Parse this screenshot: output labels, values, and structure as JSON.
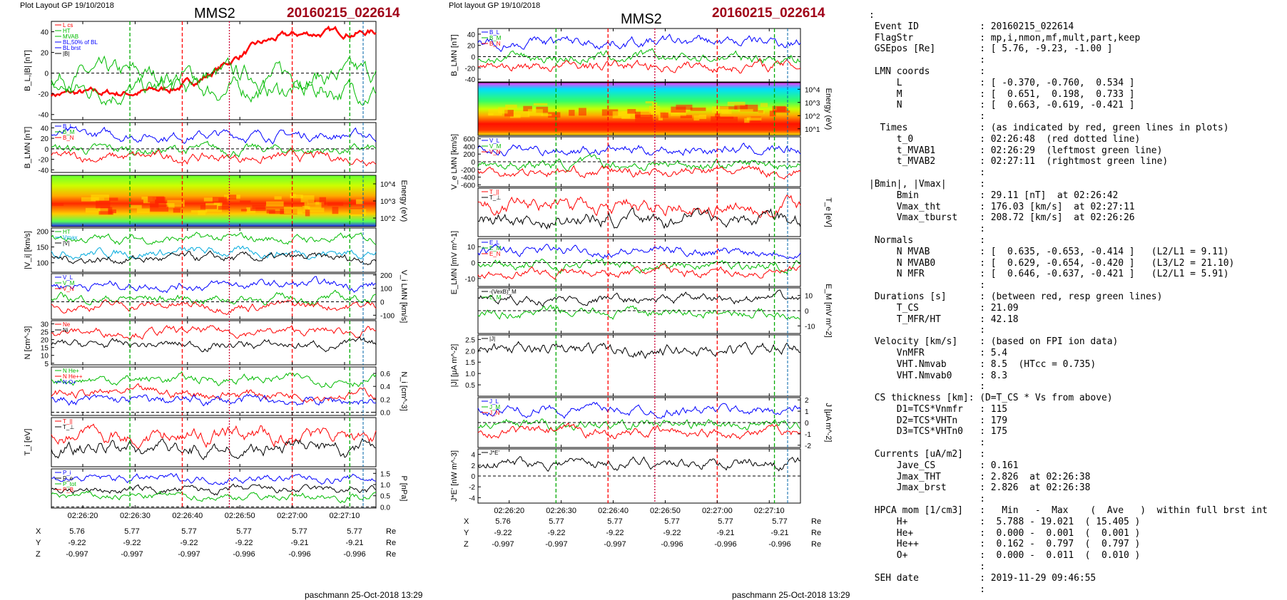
{
  "header": {
    "left_layout": "Plot Layout GP 19/10/2018",
    "right_layout": "Plot layout GP 19/10/2018",
    "spacecraft": "MMS2",
    "event": "20160215_022614",
    "footer": "paschmann 25-Oct-2018 13:29"
  },
  "colors": {
    "red": "#ff0000",
    "green": "#00bb00",
    "blue": "#0000ff",
    "black": "#000000",
    "darkred": "#a00018",
    "cyan": "#00aadd"
  },
  "time_axis": {
    "ticks": [
      "02:26:20",
      "02:26:30",
      "02:26:40",
      "02:26:50",
      "02:27:00",
      "02:27:10"
    ],
    "markers": {
      "t_MVAB1": "02:26:29",
      "t_0": "02:26:48",
      "t_MVAB2": "02:27:11"
    }
  },
  "position_table": {
    "rows": [
      {
        "label": "X",
        "values": [
          "5.76",
          "5.77",
          "5.77",
          "5.77",
          "5.77",
          "5.77"
        ],
        "unit": "Re"
      },
      {
        "label": "Y",
        "values": [
          "-9.22",
          "-9.22",
          "-9.22",
          "-9.22",
          "-9.21",
          "-9.21"
        ],
        "unit": "Re"
      },
      {
        "label": "Z",
        "values": [
          "-0.997",
          "-0.997",
          "-0.997",
          "-0.996",
          "-0.996",
          "-0.996"
        ],
        "unit": "Re"
      }
    ]
  },
  "chart_data": [
    {
      "id": "left",
      "type": "line",
      "panels": [
        {
          "ylabel": "B_L,|B| [nT]",
          "ylabel_side": "left",
          "ticks": [
            "40",
            "20",
            "0",
            "-20",
            "-40"
          ],
          "ylim": [
            -45,
            50
          ],
          "legend": [
            "L cs",
            "HT",
            "MVAB",
            "BL,50% of BL",
            "BL brst",
            "|B|"
          ],
          "legend_colors": [
            "#ff0000",
            "#00bb00",
            "#00bb00",
            "#0000ff",
            "#0000ff",
            "#000000"
          ]
        },
        {
          "ylabel": "B_LMN [nT]",
          "ylabel_side": "left",
          "ticks": [
            "40",
            "20",
            "0",
            "-20",
            "-40"
          ],
          "ylim": [
            -45,
            50
          ],
          "legend": [
            "B_L",
            "B_M",
            "B_N"
          ],
          "legend_colors": [
            "#0000ff",
            "#00bb00",
            "#ff0000"
          ]
        },
        {
          "ylabel": "Energy (eV)",
          "ylabel_side": "right",
          "ticks": [
            "10^4",
            "10^3",
            "10^2"
          ],
          "spectrogram": true
        },
        {
          "ylabel": "|V_i| [km/s]",
          "ylabel_side": "left",
          "ticks": [
            "200",
            "150",
            "100"
          ],
          "ylim": [
            70,
            210
          ],
          "legend": [
            "HT",
            "Vmax",
            "|V|"
          ],
          "legend_colors": [
            "#00bb00",
            "#00aadd",
            "#000000"
          ]
        },
        {
          "ylabel": "V_i LMN [km/s]",
          "ylabel_side": "right",
          "ticks": [
            "200",
            "100",
            "0",
            "-100"
          ],
          "ylim": [
            -130,
            210
          ],
          "legend": [
            "V_L",
            "V_M",
            "V_N"
          ],
          "legend_colors": [
            "#0000ff",
            "#00bb00",
            "#ff0000"
          ]
        },
        {
          "ylabel": "N [cm^-3]",
          "ylabel_side": "left",
          "ticks": [
            "30",
            "25",
            "20",
            "15",
            "10",
            "5"
          ],
          "ylim": [
            4,
            32
          ],
          "legend": [
            "Ne",
            "Ni"
          ],
          "legend_colors": [
            "#ff0000",
            "#000000"
          ]
        },
        {
          "ylabel": "N_i [cm^-3]",
          "ylabel_side": "right",
          "ticks": [
            "0.6",
            "0.4",
            "0.2",
            "0.0"
          ],
          "ylim": [
            -0.05,
            0.7
          ],
          "legend": [
            "N He+",
            "N He++",
            "N O+"
          ],
          "legend_colors": [
            "#00bb00",
            "#ff0000",
            "#0000ff"
          ]
        },
        {
          "ylabel": "T_i [eV]",
          "ylabel_side": "left",
          "ticks": [],
          "legend": [
            "T_||",
            "T_⊥"
          ],
          "legend_colors": [
            "#ff0000",
            "#000000"
          ]
        },
        {
          "ylabel": "P [nPa]",
          "ylabel_side": "right",
          "ticks": [
            "1.5",
            "1.0",
            "0.5",
            "0.0"
          ],
          "ylim": [
            -0.05,
            1.7
          ],
          "legend": [
            "P_i",
            "P_e",
            "P_tot",
            "P_B"
          ],
          "legend_colors": [
            "#0000ff",
            "#000000",
            "#00bb00",
            "#ff0000"
          ]
        }
      ]
    },
    {
      "id": "right",
      "type": "line",
      "panels": [
        {
          "ylabel": "B_LMN [nT]",
          "ylabel_side": "left",
          "ticks": [
            "40",
            "20",
            "0",
            "-20",
            "-40"
          ],
          "ylim": [
            -45,
            50
          ],
          "legend": [
            "B_L",
            "B_M",
            "B_N"
          ],
          "legend_colors": [
            "#0000ff",
            "#00bb00",
            "#ff0000"
          ]
        },
        {
          "ylabel": "Energy (eV)",
          "ylabel_side": "right",
          "ticks": [
            "10^4",
            "10^3",
            "10^2",
            "10^1"
          ],
          "spectrogram": true
        },
        {
          "ylabel": "V_e LMN [km/s]",
          "ylabel_side": "left",
          "ticks": [
            "600",
            "400",
            "200",
            "0",
            "-200",
            "-400",
            "-600"
          ],
          "ylim": [
            -650,
            650
          ],
          "legend": [
            "V_L",
            "V_M",
            "V_N"
          ],
          "legend_colors": [
            "#0000ff",
            "#00bb00",
            "#ff0000"
          ]
        },
        {
          "ylabel": "T_e [eV]",
          "ylabel_side": "right",
          "ticks": [],
          "legend": [
            "T_||",
            "T_⊥"
          ],
          "legend_colors": [
            "#ff0000",
            "#000000"
          ]
        },
        {
          "ylabel": "E_LMN [mV m^-1]",
          "ylabel_side": "left",
          "ticks": [
            "10",
            "0",
            "-10"
          ],
          "ylim": [
            -15,
            15
          ],
          "legend": [
            "E_L",
            "E_M",
            "E_N"
          ],
          "legend_colors": [
            "#0000ff",
            "#00bb00",
            "#ff0000"
          ]
        },
        {
          "ylabel": "E_M [mV m^-2]",
          "ylabel_side": "right",
          "ticks": [
            "10",
            "0",
            "-10"
          ],
          "ylim": [
            -15,
            15
          ],
          "legend": [
            "-(VexB)_M",
            "E_M"
          ],
          "legend_colors": [
            "#000000",
            "#00bb00"
          ]
        },
        {
          "ylabel": "|J| [μA m^-2]",
          "ylabel_side": "left",
          "ticks": [
            "2.5",
            "2.0",
            "1.5",
            "1.0",
            "0.5"
          ],
          "ylim": [
            0,
            2.7
          ],
          "legend": [
            "|J|"
          ],
          "legend_colors": [
            "#000000"
          ]
        },
        {
          "ylabel": "J [μA m^-2]",
          "ylabel_side": "right",
          "ticks": [
            "2",
            "1",
            "0",
            "-1",
            "-2"
          ],
          "ylim": [
            -2.2,
            2.2
          ],
          "legend": [
            "J_L",
            "J_M",
            "J_N"
          ],
          "legend_colors": [
            "#0000ff",
            "#00bb00",
            "#ff0000"
          ]
        },
        {
          "ylabel": "J*E' [nW m^-3]",
          "ylabel_side": "left",
          "ticks": [
            "4",
            "2",
            "0",
            "-2",
            "-4"
          ],
          "ylim": [
            -5,
            5
          ],
          "legend": [
            "J*E'"
          ],
          "legend_colors": [
            "#000000"
          ]
        }
      ]
    }
  ],
  "info": {
    "lines": [
      ":",
      " Event ID           : 20160215_022614",
      " FlagStr            : mp,i,nmon,mf,mult,part,keep",
      " GSEpos [Re]        : [ 5.76, -9.23, -1.00 ]",
      "                    :",
      " LMN coords         :",
      "     L              : [ -0.370, -0.760,  0.534 ]",
      "     M              : [  0.651,  0.198,  0.733 ]",
      "     N              : [  0.663, -0.619, -0.421 ]",
      "                    :",
      "  Times             : (as indicated by red, green lines in plots)",
      "     t_0            : 02:26:48  (red dotted line)",
      "     t_MVAB1        : 02:26:29  (leftmost green line)",
      "     t_MVAB2        : 02:27:11  (rightmost green line)",
      "                    :",
      "|Bmin|, |Vmax|      :",
      "     Bmin           : 29.11 [nT]  at 02:26:42",
      "     Vmax_tht       : 176.03 [km/s]  at 02:27:11",
      "     Vmax_tburst    : 208.72 [km/s]  at 02:26:26",
      "                    :",
      " Normals            :",
      "     N MVAB         : [  0.635, -0.653, -0.414 ]   (L2/L1 = 9.11)",
      "     N MVAB0        : [  0.629, -0.654, -0.420 ]   (L3/L2 = 21.10)",
      "     N MFR          : [  0.646, -0.637, -0.421 ]   (L2/L1 = 5.91)",
      "                    :",
      " Durations [s]      : (between red, resp green lines)",
      "     T_CS           : 21.09",
      "     T_MFR/HT       : 42.18",
      "                    :",
      " Velocity [km/s]    : (based on FPI ion data)",
      "     VnMFR          : 5.4",
      "     VHT.Nmvab      : 8.5  (HTcc = 0.735)",
      "     VHT.Nmvab0     : 8.3",
      "                    :",
      " CS thickness [km]: (D=T_CS * Vs from above)",
      "     D1=TCS*Vnmfr   : 115",
      "     D2=TCS*VHTn    : 179",
      "     D3=TCS*VHTn0   : 175",
      "                    :",
      " Currents [uA/m2]   :",
      "     Jave_CS        : 0.161",
      "     Jmax_THT       : 2.826  at 02:26:38",
      "     Jmax_brst      : 2.826  at 02:26:38",
      "                    :",
      " HPCA mom [1/cm3]   :   Min   -  Max    (  Ave   )  within full brst int",
      "     H+             :  5.788 - 19.021  ( 15.405 )",
      "     He+            :  0.000 -  0.001  (  0.001 )",
      "     He++           :  0.162 -  0.797  (  0.797 )",
      "     O+             :  0.000 -  0.011  (  0.010 )",
      "                    :",
      " SEH date           : 2019-11-29 09:46:55",
      "                    :"
    ]
  }
}
